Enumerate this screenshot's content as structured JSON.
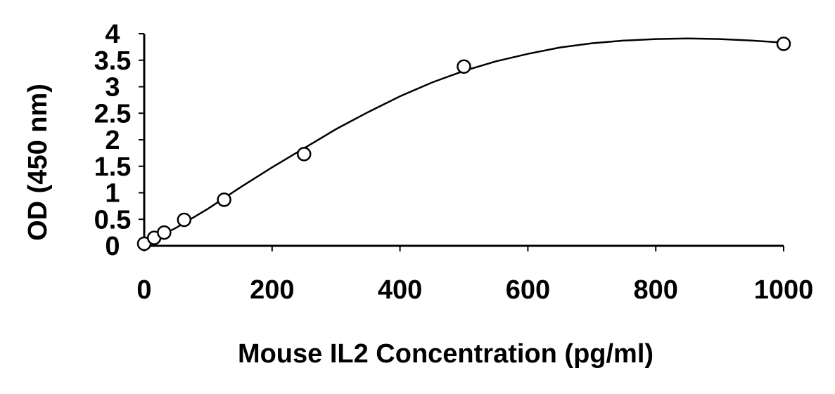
{
  "chart_data": {
    "type": "scatter",
    "xlabel": "Mouse IL2 Concentration (pg/ml)",
    "ylabel": "OD (450 nm)",
    "xlim": [
      0,
      1000
    ],
    "ylim": [
      0,
      4
    ],
    "x_ticks": [
      0,
      200,
      400,
      600,
      800,
      1000
    ],
    "y_ticks": [
      0,
      0.5,
      1,
      1.5,
      2,
      2.5,
      3,
      3.5,
      4
    ],
    "x_tick_labels": [
      "0",
      "200",
      "400",
      "600",
      "800",
      "1000"
    ],
    "y_tick_labels": [
      "0",
      "0.5",
      "1",
      "1.5",
      "2",
      "2.5",
      "3",
      "3.5",
      "4"
    ],
    "grid": false,
    "legend": "none",
    "trendline": "polynomial",
    "series": [
      {
        "x": [
          0,
          15.6,
          31.2,
          62.5,
          125,
          250,
          500,
          1000
        ],
        "y": [
          0.04,
          0.15,
          0.25,
          0.49,
          0.87,
          1.73,
          3.38,
          3.81
        ]
      }
    ],
    "fit_curve": {
      "x": [
        0,
        50,
        100,
        150,
        200,
        250,
        300,
        350,
        400,
        450,
        500,
        550,
        600,
        650,
        700,
        750,
        800,
        850,
        900,
        950,
        1000
      ],
      "y": [
        0.03,
        0.34,
        0.7,
        1.1,
        1.48,
        1.84,
        2.2,
        2.52,
        2.82,
        3.08,
        3.3,
        3.48,
        3.62,
        3.74,
        3.82,
        3.87,
        3.9,
        3.91,
        3.9,
        3.87,
        3.83
      ]
    }
  }
}
